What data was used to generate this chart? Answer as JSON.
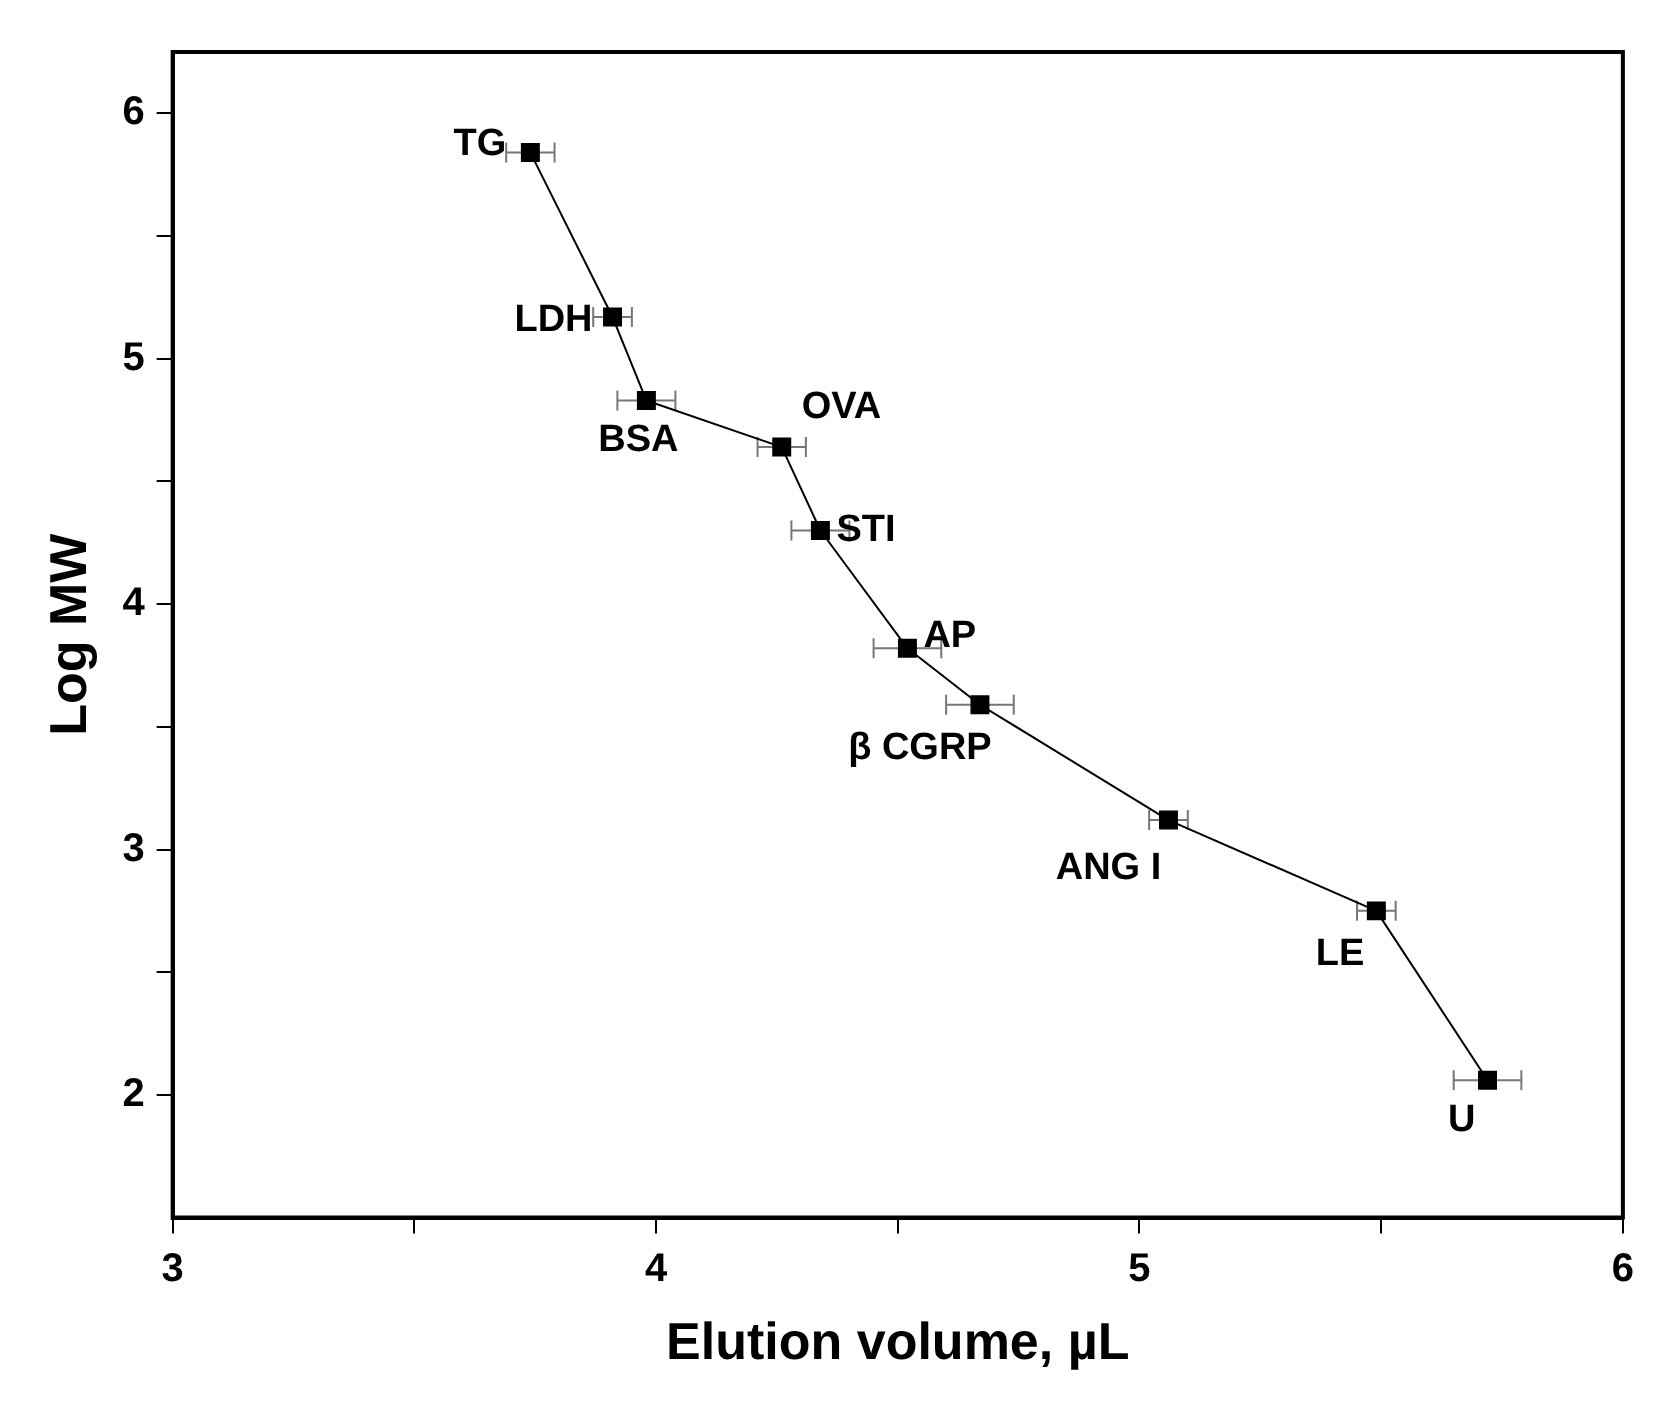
{
  "chart_data": {
    "type": "scatter",
    "xlabel": "Elution volume, µL",
    "ylabel": "Log MW",
    "x": [
      3.74,
      3.91,
      3.98,
      4.26,
      4.34,
      4.52,
      4.67,
      5.06,
      5.49,
      5.72
    ],
    "series": [
      {
        "type": "line",
        "color": "#000000",
        "values": [
          5.84,
          5.17,
          4.83,
          4.64,
          4.3,
          3.82,
          3.59,
          3.12,
          2.75,
          2.06
        ],
        "xerrors": [
          0.05,
          0.04,
          0.06,
          0.05,
          0.06,
          0.07,
          0.07,
          0.04,
          0.04,
          0.07
        ]
      }
    ],
    "xlim": [
      3,
      6
    ],
    "xticks": [
      3,
      {
        "value": 3.5,
        "label": null
      },
      4,
      {
        "value": 4.5,
        "label": null
      },
      5,
      {
        "value": 5.5,
        "label": null
      },
      6
    ],
    "ylim": [
      1.5,
      6.25
    ],
    "yticks": [
      2,
      {
        "value": 2.5,
        "label": null
      },
      3,
      {
        "value": 3.5,
        "label": null
      },
      4,
      {
        "value": 4.5,
        "label": null
      },
      5,
      {
        "value": 5.5,
        "label": null
      },
      6
    ],
    "annotations": [
      {
        "text": "TG",
        "x": 3.74,
        "y": 5.84
      },
      {
        "text": "LDH",
        "x": 3.91,
        "y": 5.17
      },
      {
        "text": "BSA",
        "x": 3.98,
        "y": 4.83
      },
      {
        "text": "OVA",
        "x": 4.26,
        "y": 4.64
      },
      {
        "text": "STI",
        "x": 4.34,
        "y": 4.3
      },
      {
        "text": "AP",
        "x": 4.52,
        "y": 3.82
      },
      {
        "text": "β CGRP",
        "x": 4.67,
        "y": 3.59
      },
      {
        "text": "ANG I",
        "x": 5.06,
        "y": 3.12
      },
      {
        "text": "LE",
        "x": 5.49,
        "y": 2.75
      },
      {
        "text": "U",
        "x": 5.72,
        "y": 2.06
      }
    ],
    "marker": "square",
    "line_style": "solid",
    "grid": false,
    "legend": false
  }
}
